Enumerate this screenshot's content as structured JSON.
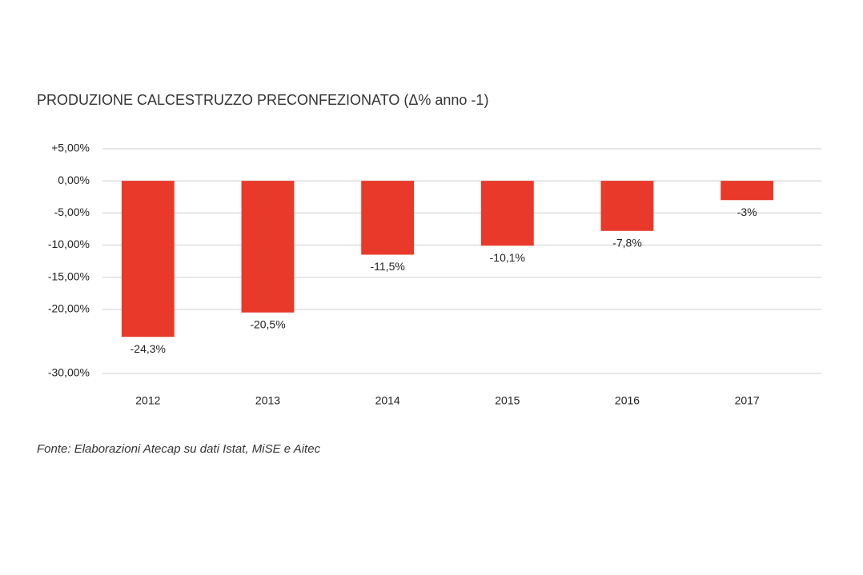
{
  "chart_data": {
    "type": "bar",
    "title": "PRODUZIONE CALCESTRUZZO PRECONFEZIONATO (Δ% anno -1)",
    "source": "Fonte: Elaborazioni Atecap su dati Istat, MiSE e Aitec",
    "categories": [
      "2012",
      "2013",
      "2014",
      "2015",
      "2016",
      "2017"
    ],
    "values": [
      -24.3,
      -20.5,
      -11.5,
      -10.1,
      -7.8,
      -3
    ],
    "value_labels": [
      "-24,3%",
      "-20,5%",
      "-11,5%",
      "-10,1%",
      "-7,8%",
      "-3%"
    ],
    "color": "#e8392a",
    "ylim": [
      -30,
      5
    ],
    "yticks": [
      {
        "value": 5,
        "label": "+5,00%"
      },
      {
        "value": 0,
        "label": "0,00%"
      },
      {
        "value": -5,
        "label": "-5,00%"
      },
      {
        "value": -10,
        "label": "-10,00%"
      },
      {
        "value": -15,
        "label": "-15,00%"
      },
      {
        "value": -20,
        "label": "-20,00%"
      },
      {
        "value": -30,
        "label": "-30,00%"
      }
    ],
    "grid": true
  }
}
